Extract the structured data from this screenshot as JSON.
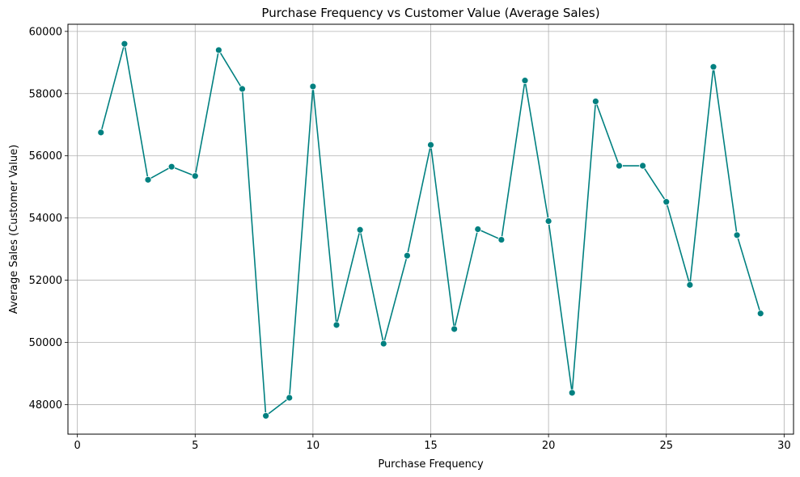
{
  "chart_data": {
    "type": "line",
    "title": "Purchase Frequency vs Customer Value (Average Sales)",
    "xlabel": "Purchase Frequency",
    "ylabel": "Average Sales (Customer Value)",
    "xlim": [
      -0.4,
      30.4
    ],
    "ylim": [
      47050,
      60230
    ],
    "xticks": [
      0,
      5,
      10,
      15,
      20,
      25,
      30
    ],
    "yticks": [
      48000,
      50000,
      52000,
      54000,
      56000,
      58000,
      60000
    ],
    "grid": true,
    "color": "#008080",
    "marker": "circle",
    "series": [
      {
        "x": [
          1,
          2,
          3,
          4,
          5,
          6,
          7,
          8,
          9,
          10,
          11,
          12,
          13,
          14,
          15,
          16,
          17,
          18,
          19,
          20,
          21,
          22,
          23,
          24,
          25,
          26,
          27,
          28,
          29
        ],
        "values": [
          56750,
          59600,
          55230,
          55650,
          55350,
          59400,
          58150,
          47640,
          48220,
          58230,
          50560,
          53620,
          49960,
          52790,
          56350,
          50430,
          53640,
          53300,
          58420,
          53900,
          48380,
          57750,
          55680,
          55680,
          54520,
          51850,
          58860,
          53450,
          50930
        ]
      }
    ]
  }
}
